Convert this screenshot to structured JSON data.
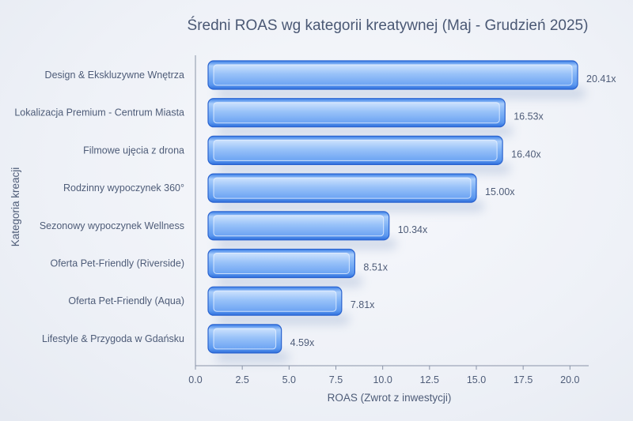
{
  "chart_data": {
    "type": "bar",
    "orientation": "horizontal",
    "title": "Średni ROAS wg kategorii kreatywnej (Maj - Grudzień 2025)",
    "xlabel": "ROAS (Zwrot z inwestycji)",
    "ylabel": "Kategoria kreacji",
    "xlim": [
      0,
      21
    ],
    "xticks": [
      0.0,
      2.5,
      5.0,
      7.5,
      10.0,
      12.5,
      15.0,
      17.5,
      20.0
    ],
    "xtick_labels": [
      "0.0",
      "2.5",
      "5.0",
      "7.5",
      "10.0",
      "12.5",
      "15.0",
      "17.5",
      "20.0"
    ],
    "grid": false,
    "bar_color": "#5b9cf2",
    "categories": [
      "Design & Ekskluzywne Wnętrza",
      "Lokalizacja Premium - Centrum Miasta",
      "Filmowe ujęcia z drona",
      "Rodzinny wypoczynek 360°",
      "Sezonowy wypoczynek Wellness",
      "Oferta Pet-Friendly (Riverside)",
      "Oferta Pet-Friendly (Aqua)",
      "Lifestyle & Przygoda w Gdańsku"
    ],
    "values": [
      20.41,
      16.53,
      16.4,
      15.0,
      10.34,
      8.51,
      7.81,
      4.59
    ],
    "value_labels": [
      "20.41x",
      "16.53x",
      "16.40x",
      "15.00x",
      "10.34x",
      "8.51x",
      "7.81x",
      "4.59x"
    ]
  }
}
